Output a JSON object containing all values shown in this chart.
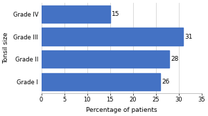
{
  "categories": [
    "Grade I",
    "Grade II",
    "Grade III",
    "Grade IV"
  ],
  "values": [
    26,
    28,
    31,
    15
  ],
  "bar_color": "#4472C4",
  "ylabel": "Tonsil size",
  "xlabel": "Percentage of patients",
  "xlim": [
    0,
    35
  ],
  "xticks": [
    0,
    5,
    10,
    15,
    20,
    25,
    30,
    35
  ],
  "bar_labels": [
    26,
    28,
    31,
    15
  ],
  "background_color": "#ffffff",
  "label_fontsize": 6.5,
  "tick_fontsize": 6,
  "bar_height": 0.78
}
